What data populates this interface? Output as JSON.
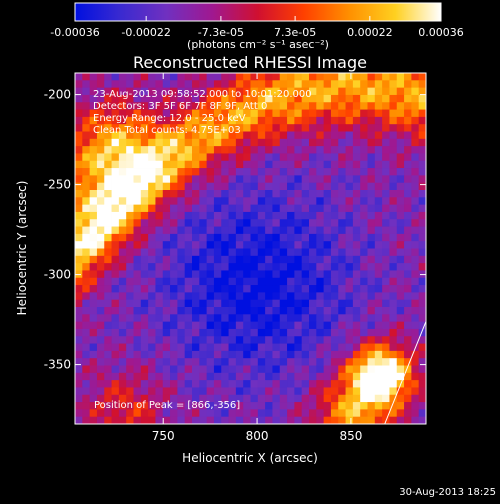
{
  "chart_data": {
    "type": "heatmap",
    "title": "Reconstructed RHESSI Image",
    "xlabel": "Heliocentric X (arcsec)",
    "ylabel": "Heliocentric Y (arcsec)",
    "xlim": [
      703,
      890
    ],
    "ylim": [
      -383,
      -188
    ],
    "x_ticks": [
      750,
      800,
      850
    ],
    "y_ticks": [
      -200,
      -250,
      -300,
      -350
    ],
    "colorbar": {
      "min": -0.00036,
      "max": 0.00036,
      "tick_values": [
        -0.00036,
        -0.00022,
        -7.3e-05,
        7.3e-05,
        0.00022,
        0.00036
      ],
      "tick_labels": [
        "-0.00036",
        "-0.00022",
        "-7.3e-05",
        "7.3e-05",
        "0.00022",
        "0.00036"
      ],
      "unit_label": "(photons cm⁻² s⁻¹ asec⁻²)"
    },
    "annotations": [
      "23-Aug-2013 09:58:52.000 to 10:01:20.000",
      "Detectors: 3F 5F 6F 7F 8F 9F, Att 0",
      "Energy Range: 12.0 - 25.0 keV",
      "Clean     Total counts: 4.75E+03"
    ],
    "peak_label": "Position of Peak = [866,-356]",
    "peak": [
      866,
      -356
    ],
    "limb_line": [
      [
        868,
        -383
      ],
      [
        890,
        -326
      ]
    ],
    "grid": false,
    "colormap": [
      "#0010e0",
      "#3a2ad0",
      "#7030c0",
      "#a01890",
      "#d01030",
      "#ff4000",
      "#ff9000",
      "#ffd020",
      "#ffffff"
    ]
  },
  "footer": {
    "timestamp": "30-Aug-2013 18:25"
  }
}
